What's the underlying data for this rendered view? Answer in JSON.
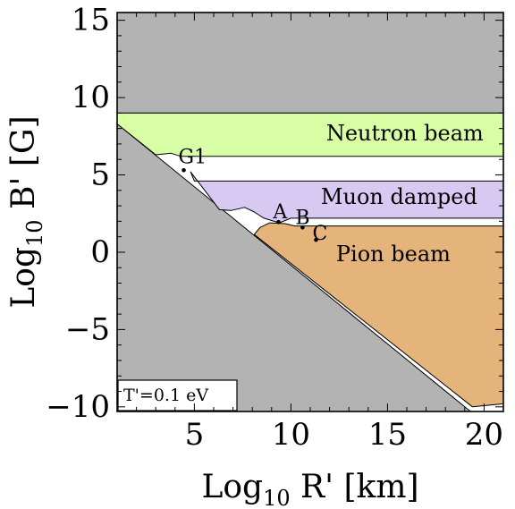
{
  "chart_data": {
    "type": "area",
    "title": "",
    "xlabel": {
      "main": "Log",
      "sub": "10",
      "rest": " R' [km]"
    },
    "ylabel": {
      "main": "Log",
      "sub": "10",
      "rest": " B' [G]"
    },
    "xlim": [
      1,
      21
    ],
    "ylim": [
      -10.3,
      15.5
    ],
    "x_ticks": [
      5,
      10,
      15,
      20
    ],
    "x_tick_labels": [
      "5",
      "10",
      "15",
      "20"
    ],
    "y_ticks": [
      -10,
      -5,
      0,
      5,
      10,
      15
    ],
    "y_tick_labels": [
      "−10",
      "−5",
      "0",
      "5",
      "10",
      "15"
    ],
    "grid": false,
    "annotation_box": "T'=0.1 eV",
    "regions": [
      {
        "id": "excluded-top",
        "label": "",
        "color": "#b3b3b3",
        "polygon": [
          [
            1,
            9.0
          ],
          [
            21,
            9.0
          ],
          [
            21,
            15.5
          ],
          [
            1,
            15.5
          ]
        ]
      },
      {
        "id": "excluded-diagonal",
        "label": "",
        "color": "#b3b3b3",
        "polygon": [
          [
            1,
            8.3
          ],
          [
            19.3,
            -10.3
          ],
          [
            1,
            -10.3
          ]
        ]
      },
      {
        "id": "neutron-beam",
        "label": "Neutron beam",
        "color": "#d8ffa6",
        "label_pos": [
          15.9,
          7.6
        ],
        "polygon": [
          [
            1.0,
            8.3
          ],
          [
            3.0,
            6.3
          ],
          [
            3.8,
            6.4
          ],
          [
            4.3,
            6.2
          ],
          [
            21,
            6.2
          ],
          [
            21,
            9.0
          ],
          [
            1.0,
            9.0
          ]
        ]
      },
      {
        "id": "muon-damped",
        "label": "Muon damped",
        "color": "#d7c9f1",
        "label_pos": [
          15.6,
          3.5
        ],
        "polygon": [
          [
            4.8,
            5.2
          ],
          [
            5.0,
            4.6
          ],
          [
            21,
            4.6
          ],
          [
            21,
            2.2
          ],
          [
            10.0,
            2.2
          ],
          [
            9.4,
            1.9
          ],
          [
            8.6,
            2.2
          ],
          [
            8.1,
            2.6
          ],
          [
            7.6,
            2.9
          ],
          [
            6.9,
            2.7
          ],
          [
            6.3,
            2.75
          ]
        ]
      },
      {
        "id": "pion-beam",
        "label": "Pion beam",
        "color": "#e5b47b",
        "label_pos": [
          15.3,
          -0.2
        ],
        "polygon": [
          [
            8.1,
            1.15
          ],
          [
            8.4,
            1.6
          ],
          [
            8.9,
            1.9
          ],
          [
            9.7,
            1.85
          ],
          [
            10.2,
            1.7
          ],
          [
            21,
            1.7
          ],
          [
            21,
            -9.8
          ],
          [
            19.4,
            -10.0
          ]
        ]
      }
    ],
    "points": [
      {
        "label": "G1",
        "x": 4.45,
        "y": 5.3
      },
      {
        "label": "A",
        "x": 9.35,
        "y": 1.95
      },
      {
        "label": "B",
        "x": 10.6,
        "y": 1.6
      },
      {
        "label": "C",
        "x": 11.3,
        "y": 0.8
      }
    ]
  }
}
